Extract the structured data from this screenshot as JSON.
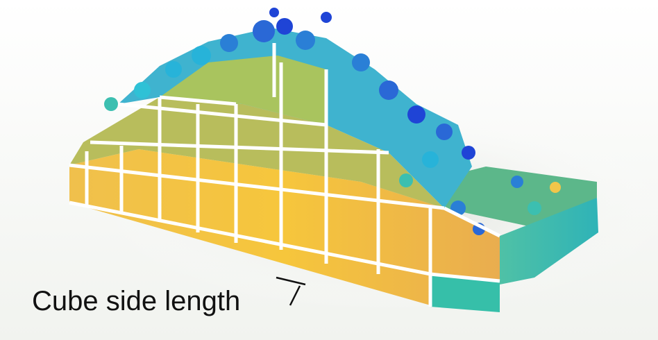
{
  "annotation": {
    "label": "Cube side length"
  },
  "colors": {
    "background": "#ffffff",
    "shadow": "#e9ece6",
    "yellow": "#f2c64a",
    "orange": "#e8b35a",
    "olive": "#b9bd5a",
    "green": "#8ec66b",
    "teal": "#3cbfb0",
    "cyan": "#27b3d9",
    "blue": "#2a7fd6",
    "deep_blue": "#1f44d6",
    "grid_line": "#ffffff",
    "marker": "#111111"
  }
}
